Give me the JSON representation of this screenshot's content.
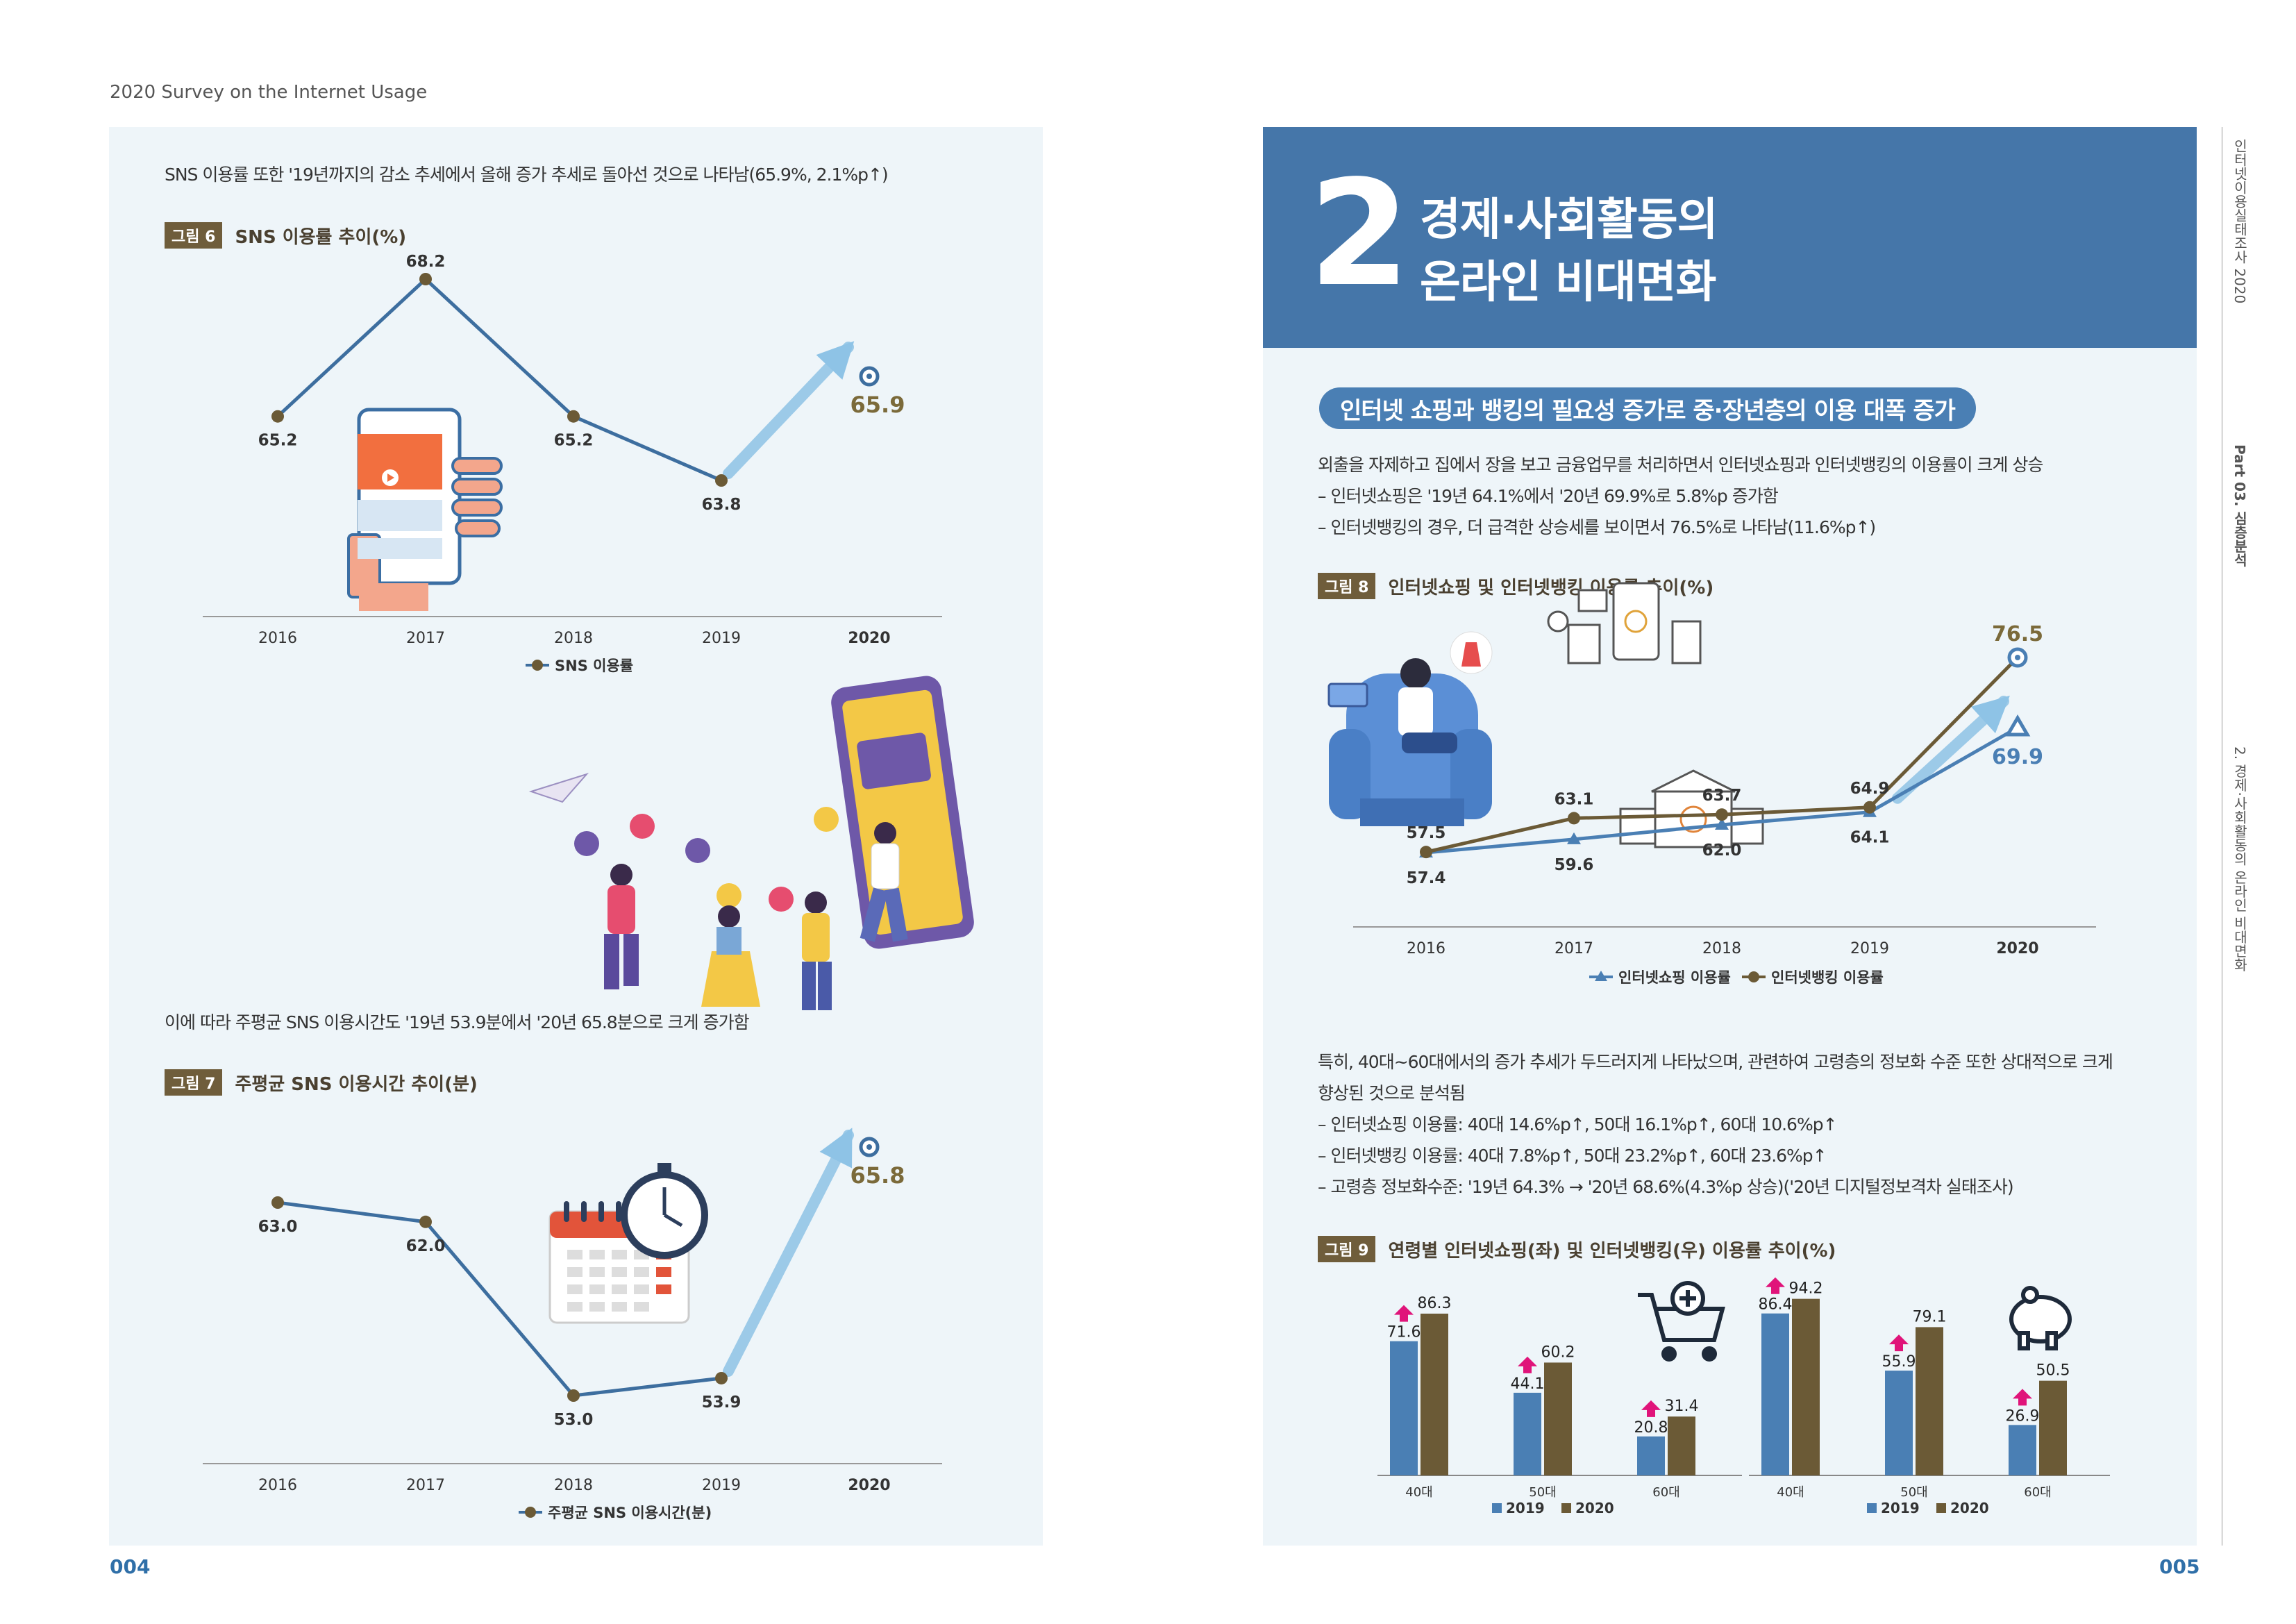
{
  "header": {
    "left_title": "2020 Survey on the Internet Usage"
  },
  "left_page": {
    "page_number": "004",
    "text1": "SNS 이용률 또한 '19년까지의 감소 추세에서 올해 증가 추세로 돌아선 것으로 나타남(65.9%, 2.1%p↑)",
    "text2": "이에 따라 주평균 SNS 이용시간도 '19년 53.9분에서 '20년 65.8분으로 크게 증가함",
    "fig6": {
      "badge": "그림 6",
      "title": "SNS 이용률 추이(%)"
    },
    "fig7": {
      "badge": "그림 7",
      "title": "주평균 SNS 이용시간 추이(분)"
    }
  },
  "right_page": {
    "page_number": "005",
    "section_number": "2",
    "section_title_line1": "경제·사회활동의",
    "section_title_line2": "온라인 비대면화",
    "subheading": "인터넷 쇼핑과 뱅킹의 필요성 증가로 중·장년층의 이용 대폭 증가",
    "para1": "외출을 자제하고 집에서 장을 보고 금융업무를 처리하면서 인터넷쇼핑과 인터넷뱅킹의 이용률이 크게 상승",
    "bullet1": "– 인터넷쇼핑은 '19년 64.1%에서 '20년 69.9%로 5.8%p 증가함",
    "bullet2": "– 인터넷뱅킹의 경우, 더 급격한 상승세를 보이면서 76.5%로 나타남(11.6%p↑)",
    "para2a": "특히, 40대~60대에서의 증가 추세가 두드러지게 나타났으며, 관련하여 고령층의 정보화 수준 또한 상대적으로 크게",
    "para2b": "향상된 것으로 분석됨",
    "bullet3": "– 인터넷쇼핑 이용률: 40대 14.6%p↑, 50대 16.1%p↑, 60대 10.6%p↑",
    "bullet4": "– 인터넷뱅킹 이용률: 40대 7.8%p↑, 50대 23.2%p↑, 60대 23.6%p↑",
    "bullet5": "– 고령층 정보화수준: '19년 64.3% → '20년 68.6%(4.3%p 상승)('20년 디지털정보격차 실태조사)",
    "fig8": {
      "badge": "그림 8",
      "title": "인터넷쇼핑 및 인터넷뱅킹 이용률 추이(%)"
    },
    "fig9": {
      "badge": "그림 9",
      "title": "연령별 인터넷쇼핑(좌) 및 인터넷뱅킹(우) 이용률 추이(%)"
    },
    "side_tabs": {
      "tab1": "인터넷이용실태조사 2020",
      "tab2": "Part 03. 심층분석",
      "tab3": "2. 경제·사회활동의 온라인 비대면화"
    }
  },
  "colors": {
    "shopping": "#4a7fb4",
    "banking": "#6b5a36",
    "title_bg": "#4576a9",
    "arrow": "#8ec3e6",
    "increase": "#e0147a"
  },
  "chart_data": [
    {
      "id": "fig6",
      "type": "line",
      "title": "SNS 이용률 추이(%)",
      "categories": [
        "2016",
        "2017",
        "2018",
        "2019",
        "2020"
      ],
      "series": [
        {
          "name": "SNS 이용률",
          "values": [
            65.2,
            68.2,
            65.2,
            63.8,
            65.9
          ]
        }
      ],
      "labels": [
        "65.2",
        "68.2",
        "65.2",
        "63.8",
        "65.9"
      ]
    },
    {
      "id": "fig7",
      "type": "line",
      "title": "주평균 SNS 이용시간 추이(분)",
      "categories": [
        "2016",
        "2017",
        "2018",
        "2019",
        "2020"
      ],
      "series": [
        {
          "name": "주평균 SNS 이용시간(분)",
          "values": [
            63.0,
            62.0,
            53.0,
            53.9,
            65.8
          ]
        }
      ],
      "labels": [
        "63.0",
        "62.0",
        "53.0",
        "53.9",
        "65.8"
      ]
    },
    {
      "id": "fig8",
      "type": "line",
      "title": "인터넷쇼핑 및 인터넷뱅킹 이용률 추이(%)",
      "categories": [
        "2016",
        "2017",
        "2018",
        "2019",
        "2020"
      ],
      "series": [
        {
          "name": "인터넷쇼핑 이용률",
          "values": [
            57.4,
            59.6,
            62.0,
            64.1,
            69.9
          ],
          "labels": [
            "57.4",
            "59.6",
            "62.0",
            "64.1",
            "69.9"
          ]
        },
        {
          "name": "인터넷뱅킹 이용률",
          "values": [
            57.5,
            63.1,
            63.7,
            64.9,
            76.5
          ],
          "labels": [
            "57.5",
            "63.1",
            "63.7",
            "64.9",
            "76.5"
          ]
        }
      ]
    },
    {
      "id": "fig9-left",
      "type": "bar",
      "title": "인터넷쇼핑",
      "categories": [
        "40대",
        "50대",
        "60대"
      ],
      "series": [
        {
          "name": "2019",
          "values": [
            71.6,
            44.1,
            20.8
          ],
          "labels": [
            "71.6",
            "44.1",
            "20.8"
          ]
        },
        {
          "name": "2020",
          "values": [
            86.3,
            60.2,
            31.4
          ],
          "labels": [
            "86.3",
            "60.2",
            "31.4"
          ]
        }
      ]
    },
    {
      "id": "fig9-right",
      "type": "bar",
      "title": "인터넷뱅킹",
      "categories": [
        "40대",
        "50대",
        "60대"
      ],
      "series": [
        {
          "name": "2019",
          "values": [
            86.4,
            55.9,
            26.9
          ],
          "labels": [
            "86.4",
            "55.9",
            "26.9"
          ]
        },
        {
          "name": "2020",
          "values": [
            94.2,
            79.1,
            50.5
          ],
          "labels": [
            "94.2",
            "79.1",
            "50.5"
          ]
        }
      ]
    }
  ]
}
